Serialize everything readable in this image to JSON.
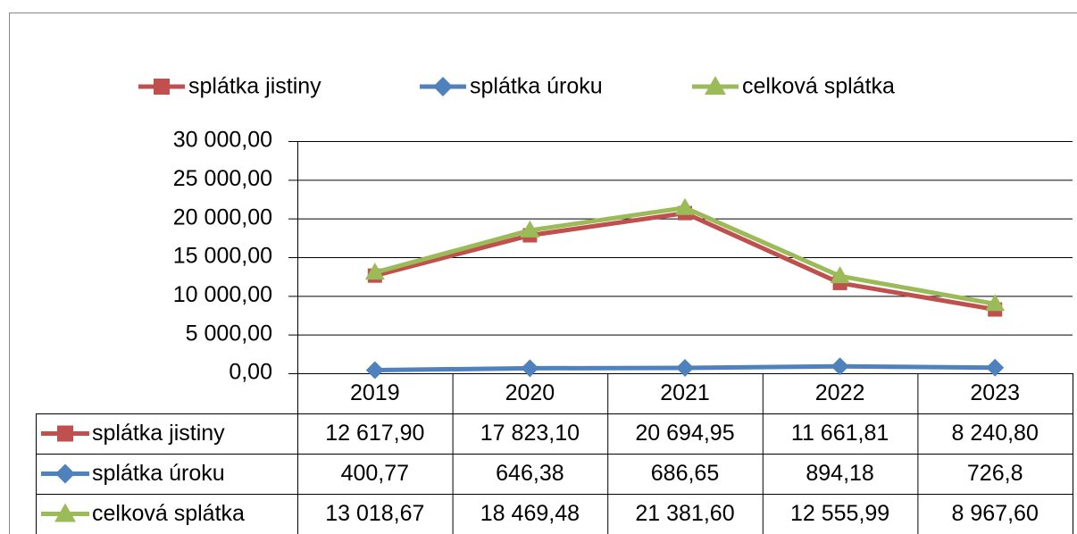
{
  "chart_data": {
    "type": "line",
    "categories": [
      "2019",
      "2020",
      "2021",
      "2022",
      "2023"
    ],
    "series": [
      {
        "name": "splátka jistiny",
        "color": "#c0504d",
        "marker": "square",
        "values": [
          12617.9,
          17823.1,
          20694.95,
          11661.81,
          8240.8
        ],
        "value_labels": [
          "12 617,90",
          "17 823,10",
          "20 694,95",
          "11 661,81",
          "8 240,80"
        ]
      },
      {
        "name": "splátka úroku",
        "color": "#4f81bd",
        "marker": "diamond",
        "values": [
          400.77,
          646.38,
          686.65,
          894.18,
          726.8
        ],
        "value_labels": [
          "400,77",
          "646,38",
          "686,65",
          "894,18",
          "726,8"
        ]
      },
      {
        "name": "celková splátka",
        "color": "#9bbb59",
        "marker": "triangle",
        "values": [
          13018.67,
          18469.48,
          21381.6,
          12555.99,
          8967.6
        ],
        "value_labels": [
          "13 018,67",
          "18 469,48",
          "21 381,60",
          "12 555,99",
          "8 967,60"
        ]
      }
    ],
    "ylim": [
      0,
      30000
    ],
    "yticks": [
      {
        "value": 0,
        "label": "0,00"
      },
      {
        "value": 5000,
        "label": "5 000,00"
      },
      {
        "value": 10000,
        "label": "10 000,00"
      },
      {
        "value": 15000,
        "label": "15 000,00"
      },
      {
        "value": 20000,
        "label": "20 000,00"
      },
      {
        "value": 25000,
        "label": "25 000,00"
      },
      {
        "value": 30000,
        "label": "30 000,00"
      }
    ],
    "grid": true,
    "legend": "top",
    "data_table": true
  }
}
